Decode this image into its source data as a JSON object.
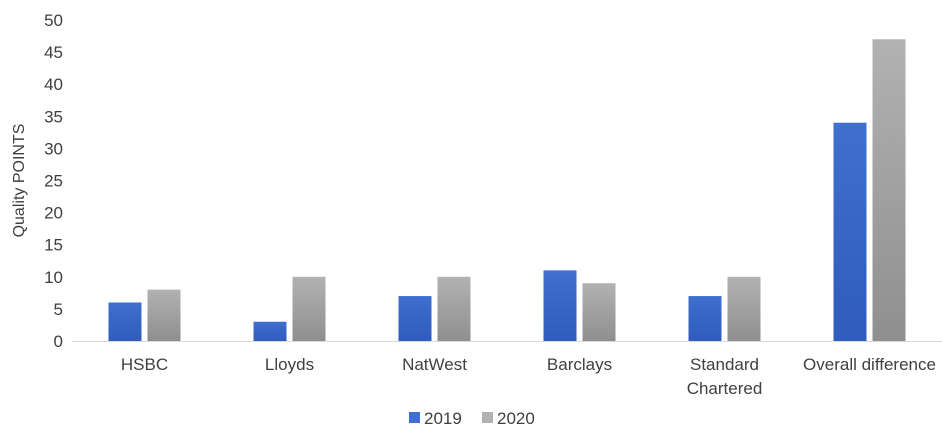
{
  "chart_data": {
    "type": "bar",
    "title": "",
    "xlabel": "",
    "ylabel": "Quality POINTS",
    "ylim": [
      0,
      50
    ],
    "yticks": [
      0,
      5,
      10,
      15,
      20,
      25,
      30,
      35,
      40,
      45,
      50
    ],
    "grid": false,
    "legend_position": "bottom",
    "categories": [
      [
        "HSBC"
      ],
      [
        "Lloyds"
      ],
      [
        "NatWest"
      ],
      [
        "Barclays"
      ],
      [
        "Standard",
        "Chartered"
      ],
      [
        "Overall difference"
      ]
    ],
    "series": [
      {
        "name": "2019",
        "values": [
          6,
          3,
          7,
          11,
          7,
          34
        ],
        "color": "#3f6fcf",
        "color_dark": "#2f5cbd"
      },
      {
        "name": "2020",
        "values": [
          8,
          10,
          10,
          9,
          10,
          47
        ],
        "color": "#b2b2b2",
        "color_dark": "#8f8f8f"
      }
    ]
  }
}
